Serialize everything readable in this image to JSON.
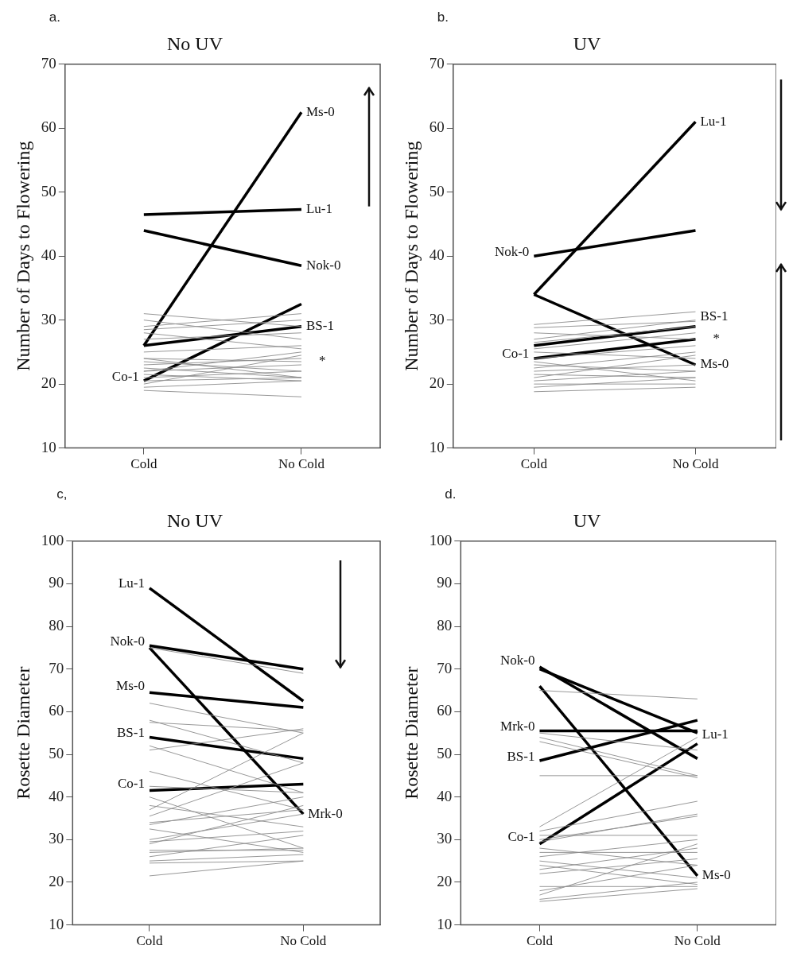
{
  "chart_data": [
    {
      "type": "line",
      "title": "No UV",
      "ylabel": "Number of Days to Flowering",
      "categories": [
        "Cold",
        "No Cold"
      ],
      "ylim": [
        10,
        70
      ],
      "yticks": [
        10,
        20,
        30,
        40,
        50,
        60,
        70
      ],
      "grid": false,
      "legend": false,
      "annotations": [
        "a.",
        {
          "text": "Ms-0",
          "x": "No Cold",
          "y": 62.5
        },
        {
          "text": "Lu-1",
          "x": "No Cold",
          "y": 47.3
        },
        {
          "text": "Nok-0",
          "x": "No Cold",
          "y": 38.5
        },
        {
          "text": "BS-1",
          "x": "No Cold",
          "y": 29
        },
        {
          "text": "*",
          "x": "No Cold",
          "y": 23.5
        },
        {
          "text": "Co-1",
          "x": "Cold",
          "y": 20.5
        }
      ],
      "series": [
        {
          "color": "#8c8c8c",
          "values": [
            31,
            29
          ]
        },
        {
          "color": "#8c8c8c",
          "values": [
            30,
            27
          ]
        },
        {
          "color": "#8c8c8c",
          "values": [
            29,
            31
          ]
        },
        {
          "color": "#8c8c8c",
          "values": [
            28.5,
            30
          ]
        },
        {
          "color": "#8c8c8c",
          "values": [
            28,
            25.5
          ]
        },
        {
          "color": "#8c8c8c",
          "values": [
            27,
            28
          ]
        },
        {
          "color": "#8c8c8c",
          "values": [
            25,
            26
          ]
        },
        {
          "color": "#8c8c8c",
          "values": [
            24,
            23.5
          ]
        },
        {
          "color": "#8c8c8c",
          "values": [
            23.5,
            22
          ]
        },
        {
          "color": "#8c8c8c",
          "values": [
            23,
            24
          ]
        },
        {
          "color": "#8c8c8c",
          "values": [
            22.5,
            21
          ]
        },
        {
          "color": "#8c8c8c",
          "values": [
            22,
            23
          ]
        },
        {
          "color": "#8c8c8c",
          "values": [
            21.5,
            20.5
          ]
        },
        {
          "color": "#8c8c8c",
          "values": [
            21,
            22
          ]
        },
        {
          "color": "#8c8c8c",
          "values": [
            20.5,
            21
          ]
        },
        {
          "color": "#8c8c8c",
          "values": [
            20,
            24.5
          ]
        },
        {
          "color": "#8c8c8c",
          "values": [
            19.5,
            20.5
          ]
        },
        {
          "color": "#8c8c8c",
          "values": [
            19,
            18
          ]
        },
        {
          "color": "#8c8c8c",
          "values": [
            22,
            25
          ]
        },
        {
          "color": "#8c8c8c",
          "values": [
            24,
            21
          ]
        },
        {
          "color": "#000000",
          "values": [
            26,
            62.5
          ]
        },
        {
          "color": "#000000",
          "values": [
            46.5,
            47.3
          ]
        },
        {
          "color": "#000000",
          "values": [
            44,
            38.5
          ]
        },
        {
          "color": "#000000",
          "values": [
            26,
            29
          ]
        },
        {
          "color": "#000000",
          "values": [
            20.5,
            32.5
          ]
        }
      ]
    },
    {
      "type": "line",
      "title": "UV",
      "ylabel": "Number of Days to Flowering",
      "categories": [
        "Cold",
        "No Cold"
      ],
      "ylim": [
        10,
        70
      ],
      "yticks": [
        10,
        20,
        30,
        40,
        50,
        60,
        70
      ],
      "grid": false,
      "legend": false,
      "annotations": [
        "b.",
        {
          "text": "Lu-1",
          "x": "No Cold",
          "y": 61
        },
        {
          "text": "Nok-0",
          "x": "Cold",
          "y": 40
        },
        {
          "text": "BS-1",
          "x": "No Cold",
          "y": 30.5
        },
        {
          "text": "*",
          "x": "No Cold",
          "y": 27
        },
        {
          "text": "Ms-0",
          "x": "No Cold",
          "y": 23
        },
        {
          "text": "Co-1",
          "x": "Cold",
          "y": 24
        }
      ],
      "series": [
        {
          "color": "#8c8c8c",
          "values": [
            29.3,
            31.3
          ]
        },
        {
          "color": "#8c8c8c",
          "values": [
            28.8,
            29.8
          ]
        },
        {
          "color": "#8c8c8c",
          "values": [
            28,
            27
          ]
        },
        {
          "color": "#8c8c8c",
          "values": [
            27,
            30
          ]
        },
        {
          "color": "#8c8c8c",
          "values": [
            25.5,
            28
          ]
        },
        {
          "color": "#8c8c8c",
          "values": [
            25,
            24
          ]
        },
        {
          "color": "#8c8c8c",
          "values": [
            24,
            26
          ]
        },
        {
          "color": "#8c8c8c",
          "values": [
            23,
            22
          ]
        },
        {
          "color": "#8c8c8c",
          "values": [
            22.5,
            25
          ]
        },
        {
          "color": "#8c8c8c",
          "values": [
            22,
            23
          ]
        },
        {
          "color": "#8c8c8c",
          "values": [
            21.5,
            21
          ]
        },
        {
          "color": "#8c8c8c",
          "values": [
            21,
            24.5
          ]
        },
        {
          "color": "#8c8c8c",
          "values": [
            20.5,
            22
          ]
        },
        {
          "color": "#8c8c8c",
          "values": [
            20,
            20
          ]
        },
        {
          "color": "#8c8c8c",
          "values": [
            19.5,
            21
          ]
        },
        {
          "color": "#8c8c8c",
          "values": [
            18.8,
            19.5
          ]
        },
        {
          "color": "#8c8c8c",
          "values": [
            26.5,
            29
          ]
        },
        {
          "color": "#8c8c8c",
          "values": [
            23.5,
            20.5
          ]
        },
        {
          "color": "#000000",
          "values": [
            34,
            61
          ]
        },
        {
          "color": "#000000",
          "values": [
            40,
            44
          ]
        },
        {
          "color": "#000000",
          "values": [
            26,
            29
          ]
        },
        {
          "color": "#000000",
          "values": [
            34,
            23
          ]
        },
        {
          "color": "#000000",
          "values": [
            24,
            27
          ]
        }
      ]
    },
    {
      "type": "line",
      "title": "No UV",
      "ylabel": "Rosette Diameter",
      "categories": [
        "Cold",
        "No Cold"
      ],
      "ylim": [
        10,
        100
      ],
      "yticks": [
        10,
        20,
        30,
        40,
        50,
        60,
        70,
        80,
        90,
        100
      ],
      "grid": false,
      "legend": false,
      "annotations": [
        "c,",
        {
          "text": "Lu-1",
          "x": "Cold",
          "y": 89
        },
        {
          "text": "Nok-0",
          "x": "Cold",
          "y": 75.5
        },
        {
          "text": "Ms-0",
          "x": "Cold",
          "y": 65
        },
        {
          "text": "BS-1",
          "x": "Cold",
          "y": 54
        },
        {
          "text": "Co-1",
          "x": "Cold",
          "y": 42
        },
        {
          "text": "Mrk-0",
          "x": "No Cold",
          "y": 36
        }
      ],
      "series": [
        {
          "color": "#8c8c8c",
          "values": [
            75,
            69
          ]
        },
        {
          "color": "#8c8c8c",
          "values": [
            62,
            55
          ]
        },
        {
          "color": "#8c8c8c",
          "values": [
            58,
            48
          ]
        },
        {
          "color": "#8c8c8c",
          "values": [
            57.5,
            55.5
          ]
        },
        {
          "color": "#8c8c8c",
          "values": [
            52,
            41
          ]
        },
        {
          "color": "#8c8c8c",
          "values": [
            51,
            56
          ]
        },
        {
          "color": "#8c8c8c",
          "values": [
            46,
            37
          ]
        },
        {
          "color": "#8c8c8c",
          "values": [
            42.5,
            41
          ]
        },
        {
          "color": "#8c8c8c",
          "values": [
            38,
            33
          ]
        },
        {
          "color": "#8c8c8c",
          "values": [
            37,
            55
          ]
        },
        {
          "color": "#8c8c8c",
          "values": [
            35.5,
            48
          ]
        },
        {
          "color": "#8c8c8c",
          "values": [
            34,
            37
          ]
        },
        {
          "color": "#8c8c8c",
          "values": [
            33.5,
            40
          ]
        },
        {
          "color": "#8c8c8c",
          "values": [
            32.5,
            27
          ]
        },
        {
          "color": "#8c8c8c",
          "values": [
            30,
            36
          ]
        },
        {
          "color": "#8c8c8c",
          "values": [
            29.5,
            32
          ]
        },
        {
          "color": "#8c8c8c",
          "values": [
            29,
            38
          ]
        },
        {
          "color": "#8c8c8c",
          "values": [
            27.5,
            27.5
          ]
        },
        {
          "color": "#8c8c8c",
          "values": [
            27,
            28
          ]
        },
        {
          "color": "#8c8c8c",
          "values": [
            26,
            31
          ]
        },
        {
          "color": "#8c8c8c",
          "values": [
            25,
            26.5
          ]
        },
        {
          "color": "#8c8c8c",
          "values": [
            24.5,
            25
          ]
        },
        {
          "color": "#8c8c8c",
          "values": [
            21.5,
            25
          ]
        },
        {
          "color": "#8c8c8c",
          "values": [
            40,
            28
          ]
        },
        {
          "color": "#000000",
          "values": [
            89,
            62.5
          ]
        },
        {
          "color": "#000000",
          "values": [
            75.5,
            70
          ]
        },
        {
          "color": "#000000",
          "values": [
            64.5,
            61
          ]
        },
        {
          "color": "#000000",
          "values": [
            54,
            49
          ]
        },
        {
          "color": "#000000",
          "values": [
            41.5,
            43
          ]
        },
        {
          "color": "#000000",
          "values": [
            75,
            36
          ]
        }
      ]
    },
    {
      "type": "line",
      "title": "UV",
      "ylabel": "Rosette Diameter",
      "categories": [
        "Cold",
        "No Cold"
      ],
      "ylim": [
        10,
        100
      ],
      "yticks": [
        10,
        20,
        30,
        40,
        50,
        60,
        70,
        80,
        90,
        100
      ],
      "grid": false,
      "legend": false,
      "annotations": [
        "d.",
        {
          "text": "Nok-0",
          "x": "Cold",
          "y": 71
        },
        {
          "text": "Mrk-0",
          "x": "Cold",
          "y": 55.5
        },
        {
          "text": "BS-1",
          "x": "Cold",
          "y": 48.5
        },
        {
          "text": "Co-1",
          "x": "Cold",
          "y": 29.5
        },
        {
          "text": "Lu-1",
          "x": "No Cold",
          "y": 54.5
        },
        {
          "text": "Ms-0",
          "x": "No Cold",
          "y": 21.5
        }
      ],
      "series": [
        {
          "color": "#8c8c8c",
          "values": [
            65,
            63
          ]
        },
        {
          "color": "#8c8c8c",
          "values": [
            55,
            51
          ]
        },
        {
          "color": "#8c8c8c",
          "values": [
            54,
            45
          ]
        },
        {
          "color": "#8c8c8c",
          "values": [
            53,
            44.5
          ]
        },
        {
          "color": "#8c8c8c",
          "values": [
            45,
            45
          ]
        },
        {
          "color": "#8c8c8c",
          "values": [
            33,
            54
          ]
        },
        {
          "color": "#8c8c8c",
          "values": [
            32,
            39
          ]
        },
        {
          "color": "#8c8c8c",
          "values": [
            31,
            31
          ]
        },
        {
          "color": "#8c8c8c",
          "values": [
            30,
            35.5
          ]
        },
        {
          "color": "#8c8c8c",
          "values": [
            29.5,
            36
          ]
        },
        {
          "color": "#8c8c8c",
          "values": [
            28,
            24
          ]
        },
        {
          "color": "#8c8c8c",
          "values": [
            27,
            27
          ]
        },
        {
          "color": "#8c8c8c",
          "values": [
            26,
            30
          ]
        },
        {
          "color": "#8c8c8c",
          "values": [
            25,
            21
          ]
        },
        {
          "color": "#8c8c8c",
          "values": [
            24,
            19.5
          ]
        },
        {
          "color": "#8c8c8c",
          "values": [
            23,
            28
          ]
        },
        {
          "color": "#8c8c8c",
          "values": [
            22,
            25.5
          ]
        },
        {
          "color": "#8c8c8c",
          "values": [
            19,
            19
          ]
        },
        {
          "color": "#8c8c8c",
          "values": [
            18,
            24
          ]
        },
        {
          "color": "#8c8c8c",
          "values": [
            17,
            29
          ]
        },
        {
          "color": "#8c8c8c",
          "values": [
            16,
            20
          ]
        },
        {
          "color": "#8c8c8c",
          "values": [
            15.5,
            18.5
          ]
        },
        {
          "color": "#000000",
          "values": [
            70.5,
            49
          ]
        },
        {
          "color": "#000000",
          "values": [
            70,
            55
          ]
        },
        {
          "color": "#000000",
          "values": [
            55.5,
            55.5
          ]
        },
        {
          "color": "#000000",
          "values": [
            48.5,
            58
          ]
        },
        {
          "color": "#000000",
          "values": [
            29,
            52.5
          ]
        },
        {
          "color": "#000000",
          "values": [
            66,
            21.5
          ]
        }
      ]
    }
  ]
}
